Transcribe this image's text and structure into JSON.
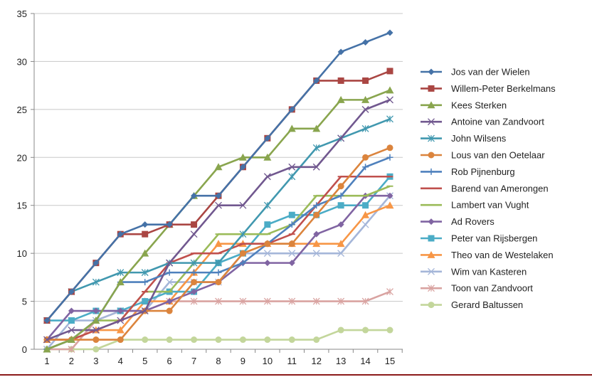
{
  "chart_data": {
    "type": "line",
    "title": "",
    "xlabel": "",
    "ylabel": "",
    "x": [
      1,
      2,
      3,
      4,
      5,
      6,
      7,
      8,
      9,
      10,
      11,
      12,
      13,
      14,
      15
    ],
    "ylim": [
      0,
      35
    ],
    "yticks": [
      0,
      5,
      10,
      15,
      20,
      25,
      30,
      35
    ],
    "grid": true,
    "legend_position": "right",
    "series": [
      {
        "name": "Jos van der Wielen",
        "color": "#4572A7",
        "marker": "diamond",
        "values": [
          3,
          6,
          9,
          12,
          13,
          13,
          16,
          16,
          19,
          22,
          25,
          28,
          31,
          32,
          33
        ]
      },
      {
        "name": "Willem-Peter Berkelmans",
        "color": "#AA4643",
        "marker": "square",
        "values": [
          3,
          6,
          9,
          12,
          12,
          13,
          13,
          16,
          19,
          22,
          25,
          28,
          28,
          28,
          29
        ]
      },
      {
        "name": "Kees Sterken",
        "color": "#89A54E",
        "marker": "triangle",
        "values": [
          0,
          1,
          3,
          7,
          10,
          13,
          16,
          19,
          20,
          20,
          23,
          23,
          26,
          26,
          27
        ]
      },
      {
        "name": "Antoine van Zandvoort",
        "color": "#71588F",
        "marker": "x",
        "values": [
          1,
          2,
          2,
          3,
          4,
          9,
          12,
          15,
          15,
          18,
          19,
          19,
          22,
          25,
          26
        ]
      },
      {
        "name": "John Wilsens",
        "color": "#4198AF",
        "marker": "asterisk",
        "values": [
          3,
          6,
          7,
          8,
          8,
          9,
          9,
          9,
          12,
          15,
          18,
          21,
          22,
          23,
          24
        ]
      },
      {
        "name": "Lous van den Oetelaar",
        "color": "#DB843D",
        "marker": "circle",
        "values": [
          1,
          1,
          1,
          1,
          4,
          4,
          7,
          7,
          10,
          11,
          11,
          14,
          17,
          20,
          21
        ]
      },
      {
        "name": "Rob Pijnenburg",
        "color": "#4F81BD",
        "marker": "plus",
        "values": [
          0,
          1,
          3,
          7,
          7,
          8,
          8,
          8,
          9,
          11,
          13,
          15,
          16,
          19,
          20
        ]
      },
      {
        "name": "Barend van Amerongen",
        "color": "#C0504D",
        "marker": "dash",
        "values": [
          1,
          1,
          2,
          3,
          6,
          9,
          10,
          10,
          11,
          11,
          12,
          15,
          18,
          18,
          18
        ]
      },
      {
        "name": "Lambert van Vught",
        "color": "#9BBB59",
        "marker": "dash",
        "values": [
          0,
          1,
          3,
          3,
          6,
          6,
          9,
          12,
          12,
          12,
          13,
          16,
          16,
          16,
          17
        ]
      },
      {
        "name": "Ad Rovers",
        "color": "#8064A2",
        "marker": "diamond",
        "values": [
          1,
          4,
          4,
          4,
          4,
          5,
          6,
          7,
          9,
          9,
          9,
          12,
          13,
          16,
          16
        ]
      },
      {
        "name": "Peter van Rijsbergen",
        "color": "#4BACC6",
        "marker": "square",
        "values": [
          3,
          3,
          4,
          4,
          5,
          6,
          6,
          9,
          10,
          13,
          14,
          14,
          15,
          15,
          18
        ]
      },
      {
        "name": "Theo van de Westelaken",
        "color": "#F79646",
        "marker": "triangle",
        "values": [
          1,
          1,
          2,
          2,
          5,
          5,
          8,
          11,
          11,
          11,
          11,
          11,
          11,
          14,
          15
        ]
      },
      {
        "name": "Wim van Kasteren",
        "color": "#A5B6D9",
        "marker": "x",
        "values": [
          0,
          3,
          3,
          4,
          4,
          7,
          7,
          7,
          10,
          10,
          10,
          10,
          10,
          13,
          16
        ]
      },
      {
        "name": "Toon van Zandvoort",
        "color": "#D9A3A1",
        "marker": "asterisk",
        "values": [
          0,
          0,
          3,
          4,
          4,
          5,
          5,
          5,
          5,
          5,
          5,
          5,
          5,
          5,
          6
        ]
      },
      {
        "name": "Gerard Baltussen",
        "color": "#C3D69B",
        "marker": "circle",
        "values": [
          0,
          0,
          0,
          1,
          1,
          1,
          1,
          1,
          1,
          1,
          1,
          1,
          2,
          2,
          2
        ]
      }
    ]
  }
}
